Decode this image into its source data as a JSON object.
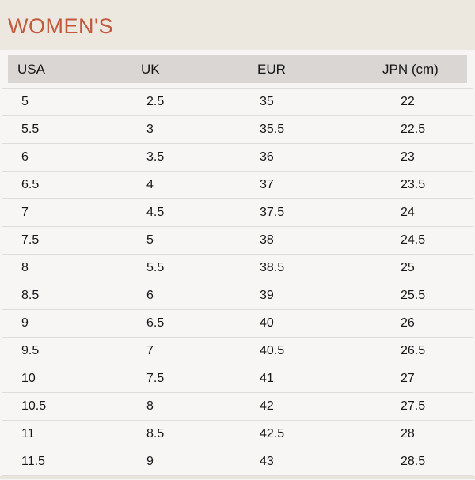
{
  "page": {
    "title": "WOMEN'S"
  },
  "table": {
    "columns": [
      "USA",
      "UK",
      "EUR",
      "JPN (cm)"
    ],
    "rows": [
      [
        "5",
        "2.5",
        "35",
        "22"
      ],
      [
        "5.5",
        "3",
        "35.5",
        "22.5"
      ],
      [
        "6",
        "3.5",
        "36",
        "23"
      ],
      [
        "6.5",
        "4",
        "37",
        "23.5"
      ],
      [
        "7",
        "4.5",
        "37.5",
        "24"
      ],
      [
        "7.5",
        "5",
        "38",
        "24.5"
      ],
      [
        "8",
        "5.5",
        "38.5",
        "25"
      ],
      [
        "8.5",
        "6",
        "39",
        "25.5"
      ],
      [
        "9",
        "6.5",
        "40",
        "26"
      ],
      [
        "9.5",
        "7",
        "40.5",
        "26.5"
      ],
      [
        "10",
        "7.5",
        "41",
        "27"
      ],
      [
        "10.5",
        "8",
        "42",
        "27.5"
      ],
      [
        "11",
        "8.5",
        "42.5",
        "28"
      ],
      [
        "11.5",
        "9",
        "43",
        "28.5"
      ]
    ]
  },
  "colors": {
    "banner_bg": "#ece8df",
    "title": "#c2583c",
    "page_bg": "#f6f5f3",
    "header_bg": "#d9d6d3",
    "row_bg": "#f7f6f5",
    "divider": "#dfdcd9",
    "strip_bg": "#e9e5de",
    "text": "#161616"
  }
}
